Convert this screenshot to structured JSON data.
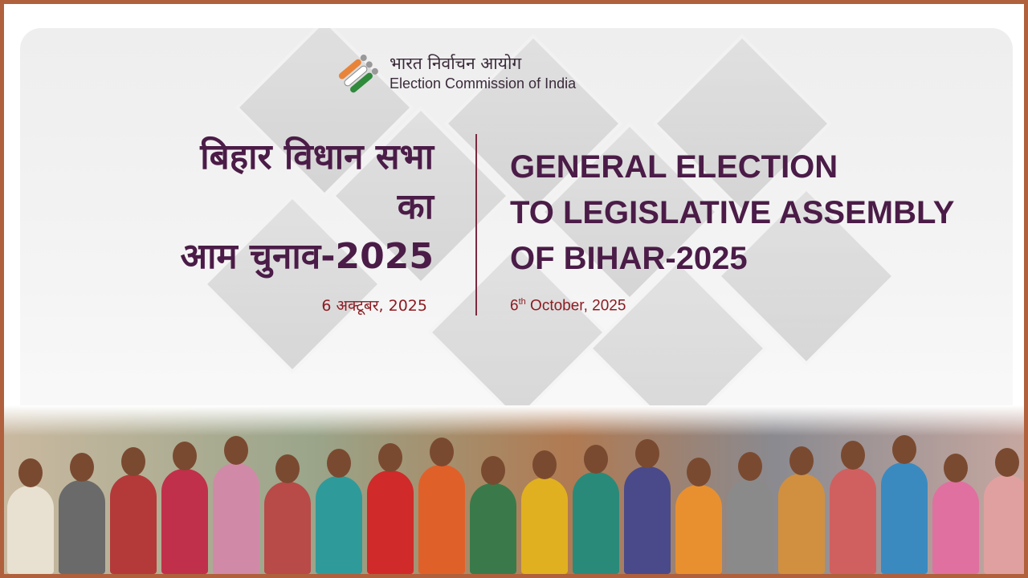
{
  "header": {
    "logo_icon": "eci-ballot-tricolor-logo",
    "org_name_hindi": "भारत निर्वाचन आयोग",
    "org_name_english": "Election Commission of India"
  },
  "title_hindi": {
    "line1": "बिहार विधान सभा",
    "line2": "का",
    "line3": "आम चुनाव-2025"
  },
  "title_english": {
    "line1": "GENERAL ELECTION",
    "line2": "TO LEGISLATIVE ASSEMBLY",
    "line3": "OF BIHAR-2025"
  },
  "date_hindi": "6 अक्टूबर, 2025",
  "date_english": {
    "day": "6",
    "suffix": "th",
    "rest": " October, 2025"
  },
  "colors": {
    "title": "#4b1c47",
    "date": "#8c1c22",
    "frame": "#b0603c"
  },
  "photo": {
    "description_icon": "voters-group-photo"
  }
}
